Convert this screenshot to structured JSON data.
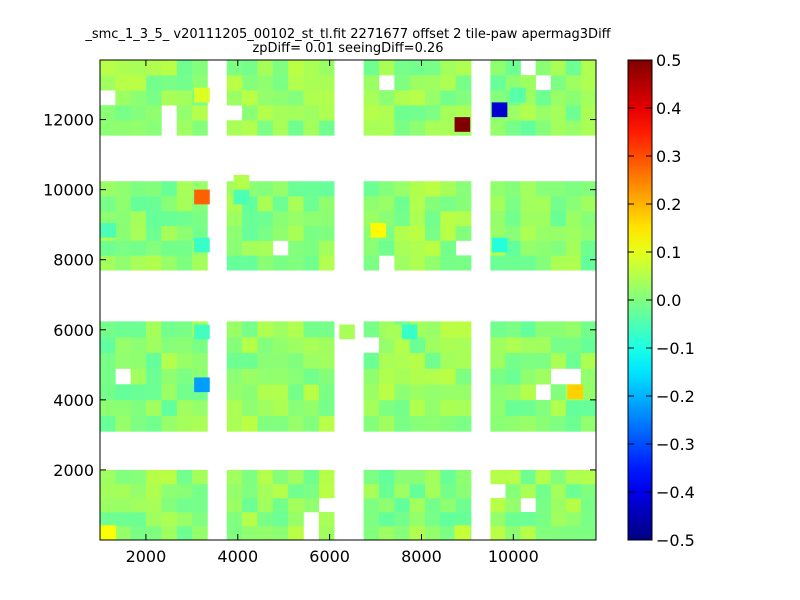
{
  "chart_data": {
    "type": "heatmap",
    "title_line1": "_smc_1_3_5_ v20111205_00102_st_tl.fit 2271677 offset 2 tile-paw apermag3Diff",
    "title_line2": "zpDiff= 0.01 seeingDiff=0.26",
    "xlabel": "",
    "ylabel": "",
    "xlim": [
      1000,
      11800
    ],
    "ylim": [
      0,
      13700
    ],
    "x_ticks": [
      2000,
      4000,
      6000,
      8000,
      10000
    ],
    "y_ticks": [
      2000,
      4000,
      6000,
      8000,
      10000,
      12000
    ],
    "cell_size": [
      340,
      420
    ],
    "colorscale": "jet",
    "colorbar": {
      "vmin": -0.5,
      "vmax": 0.5,
      "ticks": [
        "0.5",
        "0.4",
        "0.3",
        "0.2",
        "0.1",
        "0.0",
        "−0.1",
        "−0.2",
        "−0.3",
        "−0.4",
        "−0.5"
      ]
    },
    "detector_blocks": [
      {
        "x": [
          1000,
          3340
        ],
        "y": [
          0,
          2000
        ],
        "value": 0.02
      },
      {
        "x": [
          3760,
          6100
        ],
        "y": [
          0,
          2000
        ],
        "value": 0.02
      },
      {
        "x": [
          6740,
          9080
        ],
        "y": [
          0,
          2000
        ],
        "value": 0.01
      },
      {
        "x": [
          9500,
          11800
        ],
        "y": [
          0,
          2000
        ],
        "value": 0.02
      },
      {
        "x": [
          1000,
          3340
        ],
        "y": [
          3100,
          6240
        ],
        "value": 0.01
      },
      {
        "x": [
          3760,
          6100
        ],
        "y": [
          3100,
          6240
        ],
        "value": 0.02
      },
      {
        "x": [
          6740,
          9080
        ],
        "y": [
          3100,
          6240
        ],
        "value": 0.02
      },
      {
        "x": [
          9500,
          11800
        ],
        "y": [
          3100,
          6240
        ],
        "value": 0.01
      },
      {
        "x": [
          1000,
          3340
        ],
        "y": [
          7700,
          10240
        ],
        "value": 0.01
      },
      {
        "x": [
          3760,
          6100
        ],
        "y": [
          7700,
          10240
        ],
        "value": 0.01
      },
      {
        "x": [
          6740,
          9080
        ],
        "y": [
          7700,
          10240
        ],
        "value": 0.02
      },
      {
        "x": [
          9500,
          11800
        ],
        "y": [
          7700,
          10240
        ],
        "value": 0.01
      },
      {
        "x": [
          1000,
          3340
        ],
        "y": [
          11550,
          13700
        ],
        "value": 0.02
      },
      {
        "x": [
          3760,
          6100
        ],
        "y": [
          11550,
          13700
        ],
        "value": 0.02
      },
      {
        "x": [
          6740,
          9080
        ],
        "y": [
          11550,
          13700
        ],
        "value": 0.02
      },
      {
        "x": [
          9500,
          11800
        ],
        "y": [
          11550,
          13700
        ],
        "value": 0.01
      }
    ],
    "outlier_cells": [
      {
        "x": 1180,
        "y": 210,
        "value": 0.12
      },
      {
        "x": 3220,
        "y": 9790,
        "value": 0.28
      },
      {
        "x": 3220,
        "y": 4430,
        "value": -0.22
      },
      {
        "x": 7060,
        "y": 8840,
        "value": 0.13
      },
      {
        "x": 8890,
        "y": 11860,
        "value": 0.5
      },
      {
        "x": 9700,
        "y": 12280,
        "value": -0.42
      },
      {
        "x": 11350,
        "y": 4230,
        "value": 0.17
      },
      {
        "x": 9700,
        "y": 8420,
        "value": -0.09
      },
      {
        "x": 3220,
        "y": 8420,
        "value": -0.07
      },
      {
        "x": 3220,
        "y": 5940,
        "value": -0.06
      },
      {
        "x": 7740,
        "y": 5940,
        "value": -0.07
      },
      {
        "x": 7400,
        "y": 5940,
        "value": 0.04
      },
      {
        "x": 4080,
        "y": 9790,
        "value": -0.05
      },
      {
        "x": 6380,
        "y": 5940,
        "value": 0.04
      },
      {
        "x": 4080,
        "y": 10210,
        "value": 0.05
      },
      {
        "x": 3220,
        "y": 12700,
        "value": 0.09
      },
      {
        "x": 8890,
        "y": 210,
        "value": 0.07
      },
      {
        "x": 1180,
        "y": 8840,
        "value": -0.05
      },
      {
        "x": 10100,
        "y": 12700,
        "value": -0.04
      }
    ],
    "blank_cells": [
      {
        "x": 1180,
        "y": 12700
      },
      {
        "x": 2520,
        "y": 12280
      },
      {
        "x": 2520,
        "y": 11860
      },
      {
        "x": 1500,
        "y": 4650
      },
      {
        "x": 10780,
        "y": 13120
      },
      {
        "x": 10440,
        "y": 13540
      },
      {
        "x": 11120,
        "y": 4650
      },
      {
        "x": 10780,
        "y": 4230
      },
      {
        "x": 5640,
        "y": 210
      },
      {
        "x": 5640,
        "y": 630
      },
      {
        "x": 6040,
        "y": 1050
      },
      {
        "x": 10440,
        "y": 1050
      },
      {
        "x": 9700,
        "y": 1470
      },
      {
        "x": 5000,
        "y": 8420
      },
      {
        "x": 7300,
        "y": 7980
      },
      {
        "x": 7300,
        "y": 13120
      },
      {
        "x": 3840,
        "y": 12280
      },
      {
        "x": 3460,
        "y": 5540
      },
      {
        "x": 8890,
        "y": 8420
      },
      {
        "x": 6940,
        "y": 5540
      }
    ]
  }
}
